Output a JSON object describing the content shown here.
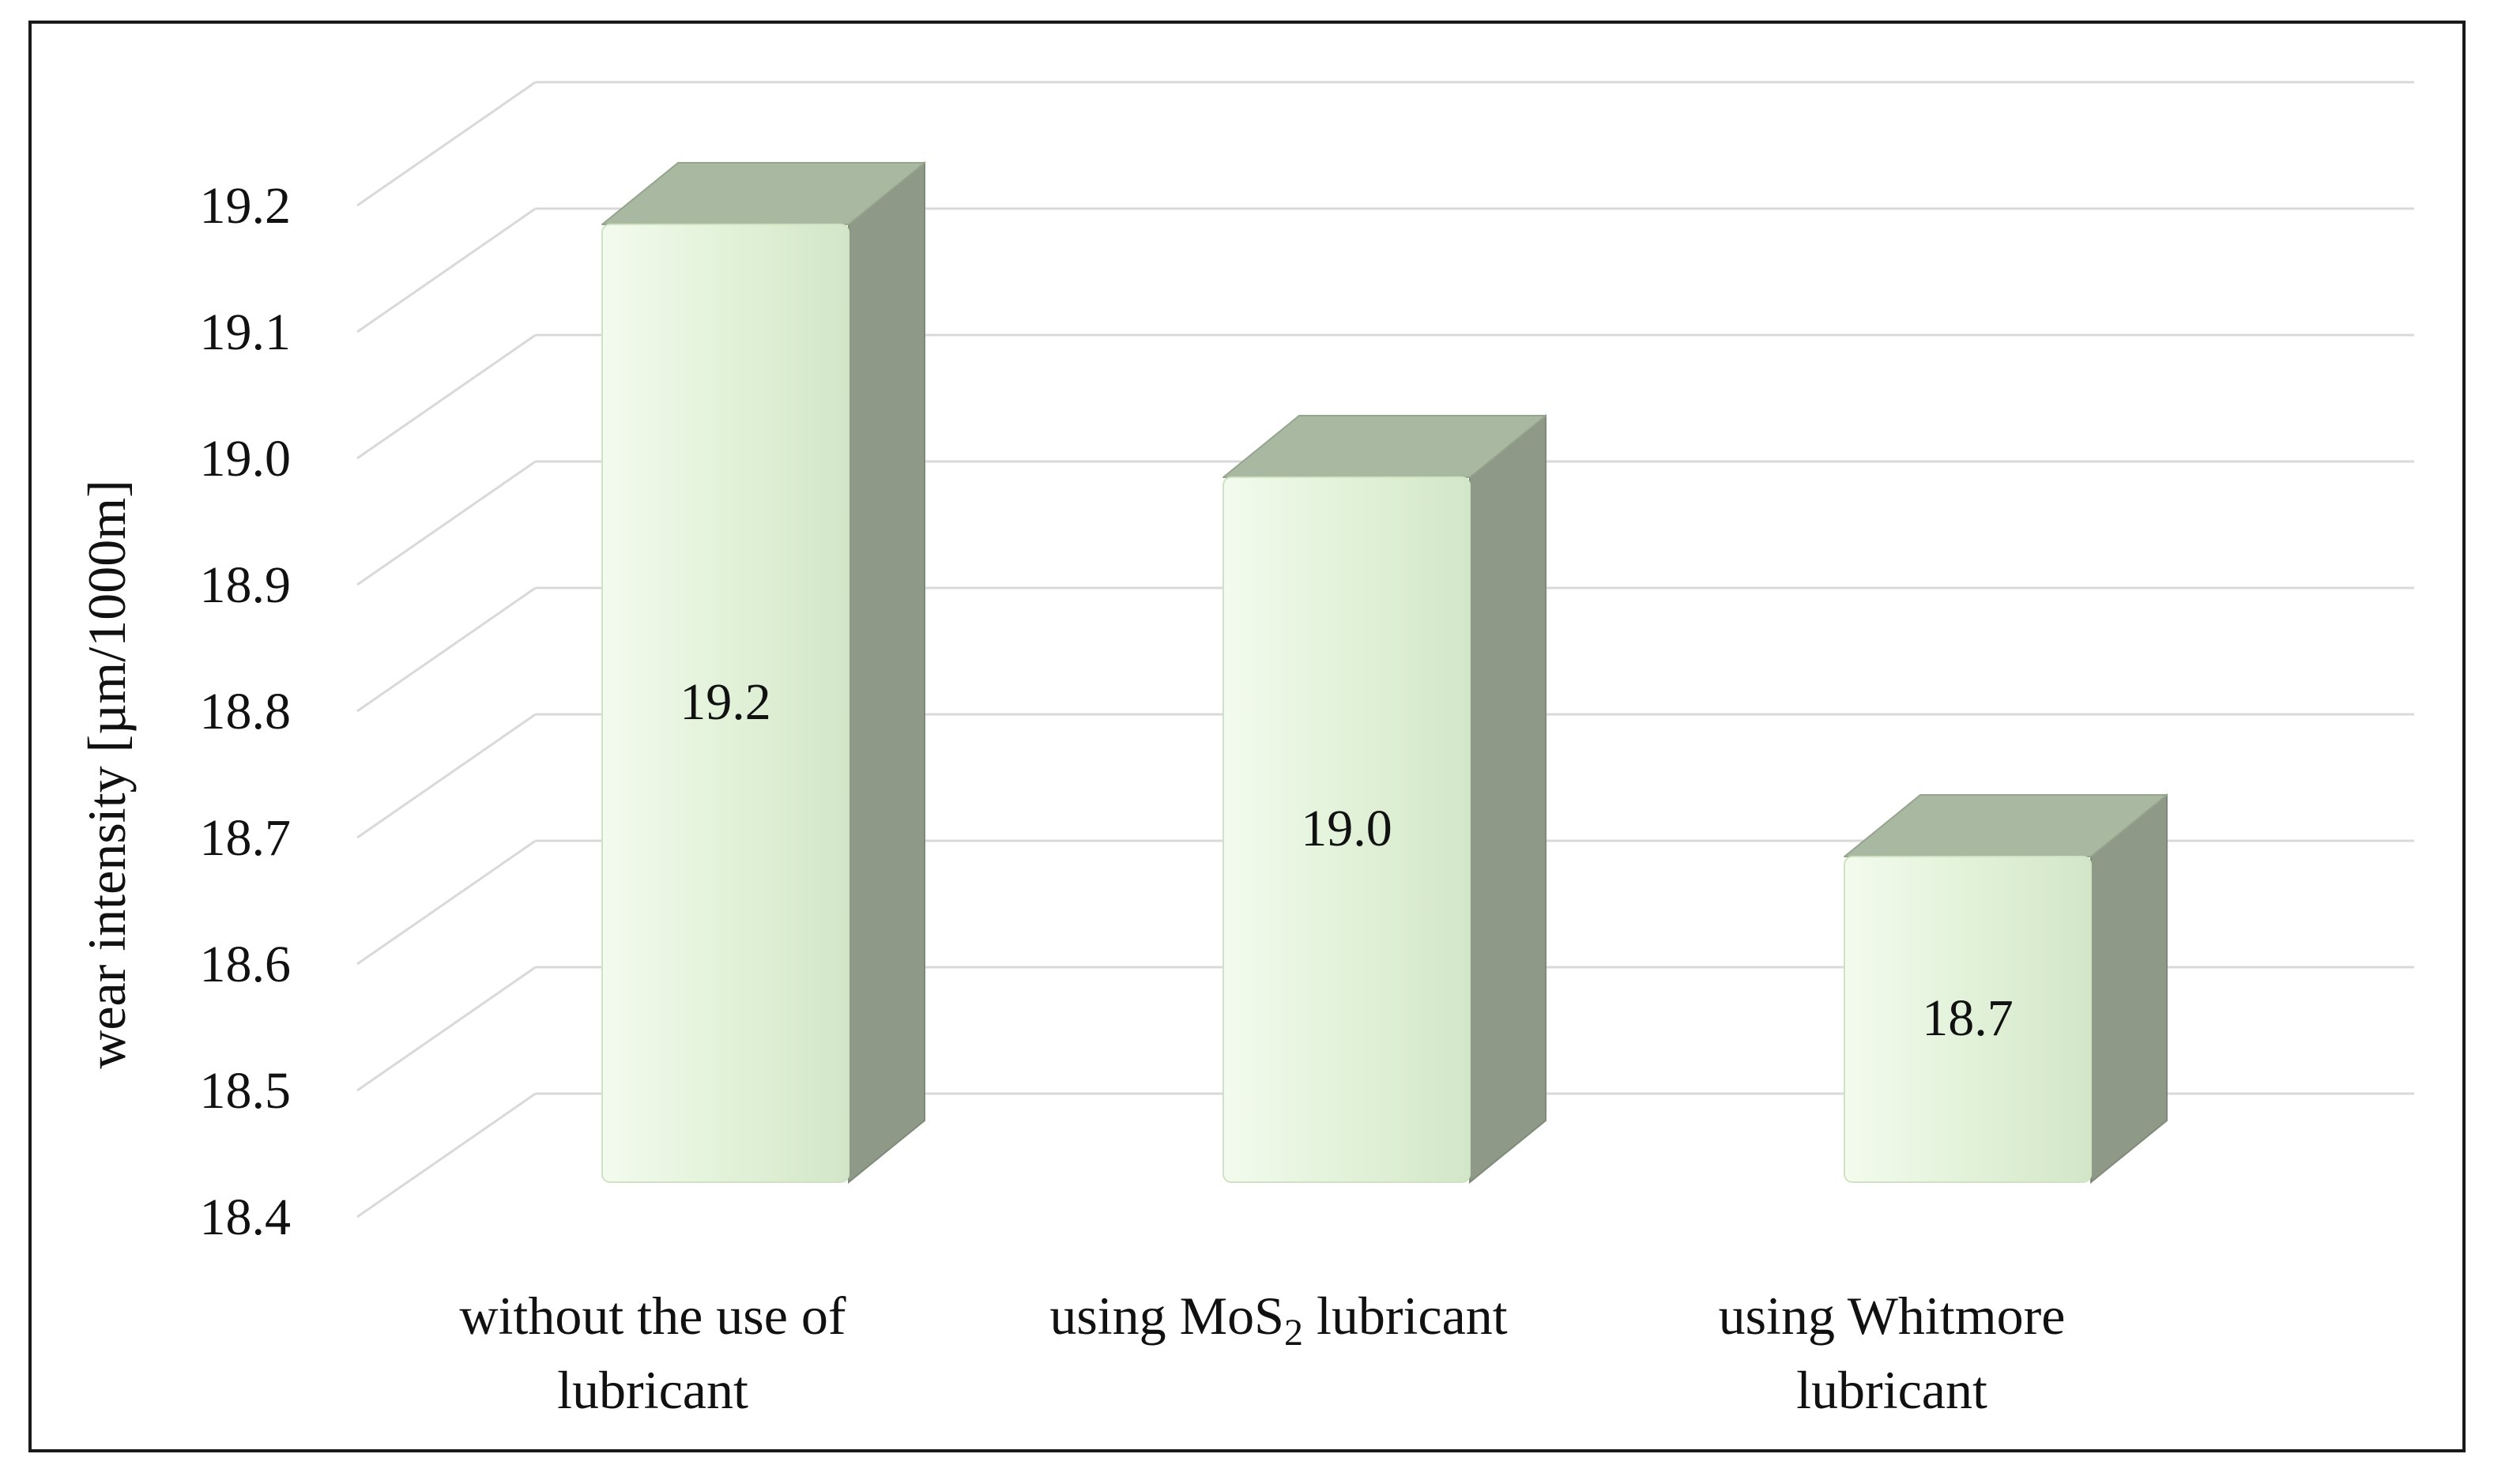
{
  "chart_data": {
    "type": "bar",
    "style": "3d-column",
    "categories": [
      {
        "lines": [
          "without the use of",
          "lubricant"
        ]
      },
      {
        "lines": [
          "using MoS",
          "2",
          " lubricant"
        ],
        "subscript_index": 1
      },
      {
        "lines": [
          "using Whitmore",
          "lubricant"
        ]
      }
    ],
    "values": [
      19.2,
      19.0,
      18.7
    ],
    "data_labels": [
      "19.2",
      "19.0",
      "18.7"
    ],
    "ylabel": "wear intensity [µm/1000m]",
    "ylim": [
      18.4,
      19.3
    ],
    "yticks": [
      "18.4",
      "18.5",
      "18.6",
      "18.7",
      "18.8",
      "18.9",
      "19.0",
      "19.1",
      "19.2"
    ],
    "grid": true,
    "legend": "none",
    "colors": {
      "front": "#e2f2d9",
      "side": "#8e9a87",
      "top": "#a9b8a0",
      "grid": "#d9d9d9"
    }
  }
}
